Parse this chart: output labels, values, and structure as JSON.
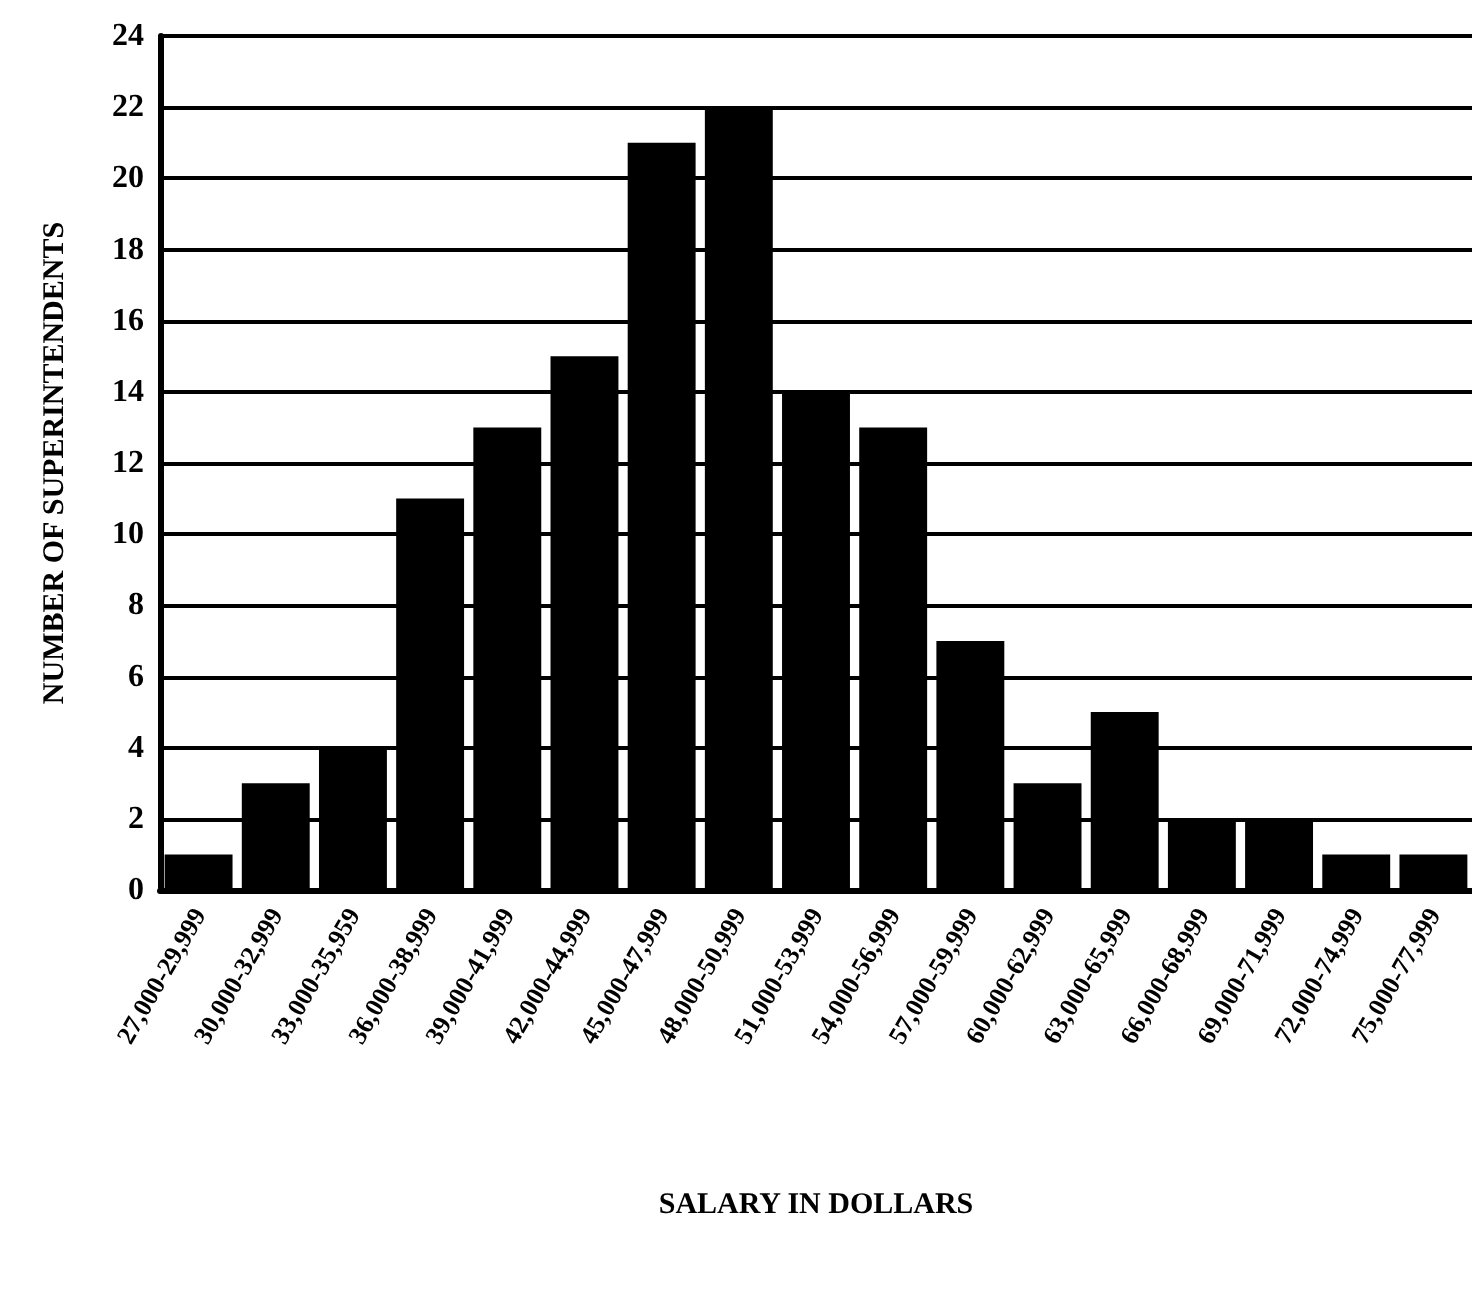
{
  "chart_data": {
    "type": "bar",
    "xlabel": "SALARY IN DOLLARS",
    "ylabel": "NUMBER OF SUPERINTENDENTS",
    "categories": [
      "27,000-29,999",
      "30,000-32,999",
      "33,000-35,959",
      "36,000-38,999",
      "39,000-41,999",
      "42,000-44,999",
      "45,000-47,999",
      "48,000-50,999",
      "51,000-53,999",
      "54,000-56,999",
      "57,000-59,999",
      "60,000-62,999",
      "63,000-65,999",
      "66,000-68,999",
      "69,000-71,999",
      "72,000-74,999",
      "75,000-77,999"
    ],
    "values": [
      1,
      3,
      4,
      11,
      13,
      15,
      21,
      22,
      14,
      13,
      7,
      3,
      5,
      2,
      2,
      1,
      1
    ],
    "color": "#000000",
    "ylim": [
      0,
      24
    ],
    "yticks": [
      0,
      2,
      4,
      6,
      8,
      10,
      12,
      14,
      16,
      18,
      20,
      22,
      24
    ],
    "grid": "y"
  }
}
